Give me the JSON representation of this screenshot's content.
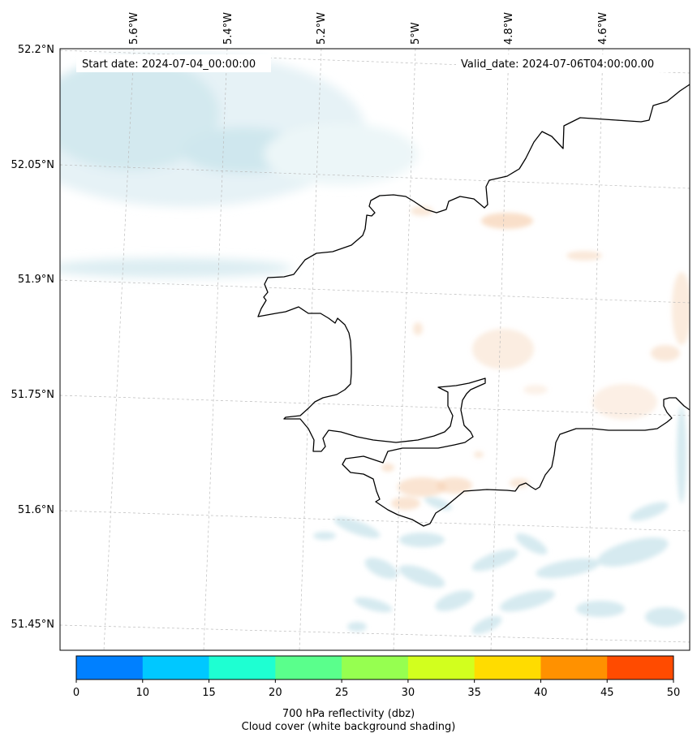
{
  "map": {
    "start_date": "Start date: 2024-07-04_00:00:00",
    "valid_date": "Valid_date: 2024-07-06T04:00:00.00",
    "lon_labels": [
      "5.6°W",
      "5.4°W",
      "5.2°W",
      "5°W",
      "4.8°W",
      "4.6°W"
    ],
    "lat_labels": [
      "52.2°N",
      "52.05°N",
      "51.9°N",
      "51.75°N",
      "51.6°N",
      "51.45°N"
    ],
    "cloud_color": "#cfe7ee",
    "reflectivity_light_color": "#f6d2b4",
    "coastline_color": "#000000",
    "grid_color": "#bbbbbb"
  },
  "colorbar": {
    "colors": [
      "#0080ff",
      "#00c8ff",
      "#1effd2",
      "#5aff8c",
      "#96ff50",
      "#d2ff1e",
      "#ffdc00",
      "#ff9100",
      "#ff4b00"
    ],
    "ticks": [
      "0",
      "10",
      "15",
      "20",
      "25",
      "30",
      "35",
      "40",
      "45",
      "50"
    ],
    "label": "700 hPa reflectivity (dbz)",
    "sublabel": "Cloud cover (white background shading)"
  }
}
